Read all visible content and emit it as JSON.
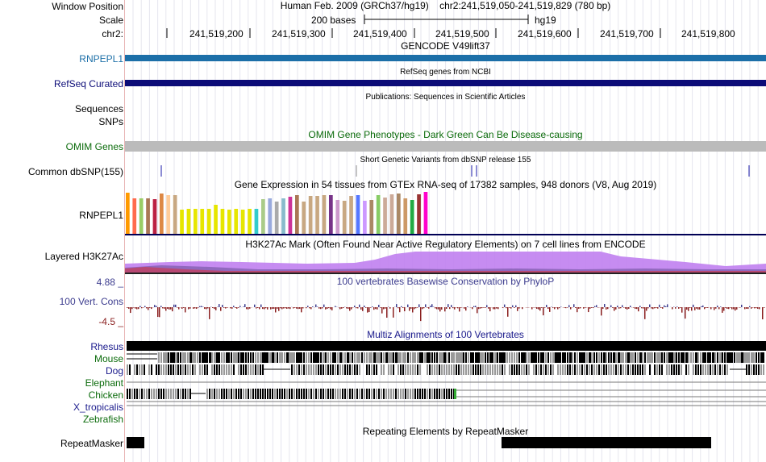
{
  "header": {
    "window_position_label": "Window Position",
    "window_position_value": "Human Feb. 2009 (GRCh37/hg19)    chr2:241,519,050-241,519,829 (780 bp)",
    "scale_label": "Scale",
    "scale_text": "200 bases",
    "scale_db": "hg19",
    "chrom_label": "chr2:",
    "ruler_ticks": [
      "241,519,200",
      "241,519,300",
      "241,519,400",
      "241,519,500",
      "241,519,600",
      "241,519,700",
      "241,519,800"
    ]
  },
  "tracks": {
    "gencode": {
      "title": "GENCODE V49lift37",
      "label": "RNPEPL1",
      "color": "#1c6fa8"
    },
    "refseq": {
      "title": "RefSeq genes from NCBI",
      "label": "RefSeq Curated",
      "color": "#0c0c78"
    },
    "publications": {
      "title": "Publications: Sequences in Scientific Articles",
      "label1": "Sequences",
      "label2": "SNPs"
    },
    "omim": {
      "title": "OMIM Gene Phenotypes - Dark Green Can Be Disease-causing",
      "label": "OMIM Genes",
      "color": "#bbbbbb",
      "title_color": "#0b6b0b"
    },
    "dbsnp": {
      "title": "Short Genetic Variants from dbSNP release 155",
      "label": "Common dbSNP(155)"
    },
    "gtex": {
      "title": "Gene Expression in 54 tissues from GTEx RNA-seq of 17382 samples, 948 donors (V8, Aug 2019)",
      "label": "RNPEPL1"
    },
    "h3k27ac": {
      "title": "H3K27Ac Mark (Often Found Near Active Regulatory Elements) on 7 cell lines from ENCODE",
      "label": "Layered H3K27Ac"
    },
    "phylop": {
      "title": "100 vertebrates Basewise Conservation by PhyloP",
      "label": "100 Vert. Cons",
      "max_label": "4.88 _",
      "min_label": "-4.5 _",
      "color": "#3d3d8f"
    },
    "multiz": {
      "title": "Multiz Alignments of 100 Vertebrates",
      "title_color": "#1a1a8c",
      "species": [
        {
          "name": "Rhesus",
          "color": "#1a1a8c"
        },
        {
          "name": "Mouse",
          "color": "#0b6b0b"
        },
        {
          "name": "Dog",
          "color": "#1a1a8c"
        },
        {
          "name": "Elephant",
          "color": "#0b6b0b"
        },
        {
          "name": "Chicken",
          "color": "#0b6b0b"
        },
        {
          "name": "X_tropicalis",
          "color": "#1a1a8c"
        },
        {
          "name": "Zebrafish",
          "color": "#0b6b0b"
        }
      ]
    },
    "repeatmasker": {
      "title": "Repeating Elements by RepeatMasker",
      "label": "RepeatMasker"
    }
  }
}
